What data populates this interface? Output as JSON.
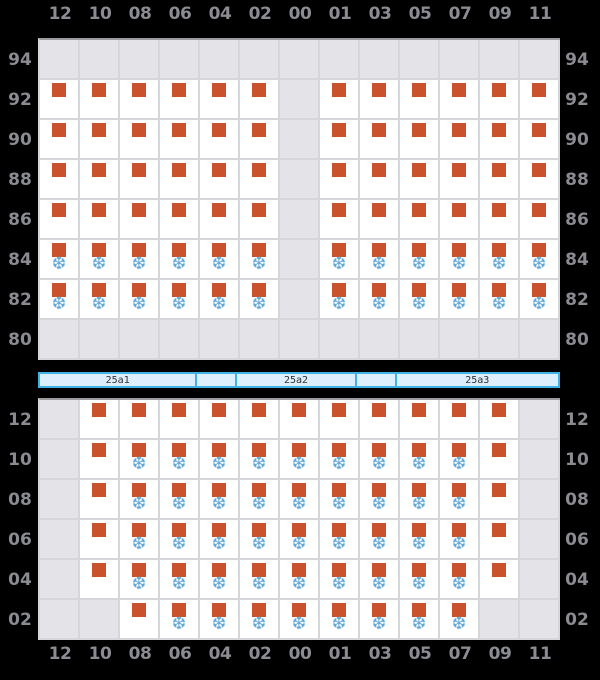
{
  "colors": {
    "background": "#000000",
    "cell_white": "#ffffff",
    "cell_empty": "#e4e4e8",
    "grid_line": "#d5d6da",
    "grid_top_line": "#9b9c9f",
    "label_gray": "#8b8b92",
    "orange_square": "#c9512c",
    "snowflake_blue": "#5ea7d8",
    "bar_border": "#41b2e5",
    "bar_fill": "#ddeefc",
    "bar_text": "#333333"
  },
  "icons": {
    "snowflake": "❆"
  },
  "cell_state_legend": {
    "e": "empty-gray-cell",
    "s": "orange-square-only",
    "sf": "orange-square-with-snowflake"
  },
  "columns": [
    "12",
    "10",
    "08",
    "06",
    "04",
    "02",
    "00",
    "01",
    "03",
    "05",
    "07",
    "09",
    "11"
  ],
  "top_axis_labels": [
    "12",
    "10",
    "08",
    "06",
    "04",
    "02",
    "00",
    "01",
    "03",
    "05",
    "07",
    "09",
    "11"
  ],
  "bottom_axis_labels": [
    "12",
    "10",
    "08",
    "06",
    "04",
    "02",
    "00",
    "01",
    "03",
    "05",
    "07",
    "09",
    "11"
  ],
  "top_grid": {
    "row_labels": [
      "94",
      "92",
      "90",
      "88",
      "86",
      "84",
      "82",
      "80"
    ],
    "rows": [
      {
        "label": "94",
        "cells": [
          "e",
          "e",
          "e",
          "e",
          "e",
          "e",
          "e",
          "e",
          "e",
          "e",
          "e",
          "e",
          "e"
        ]
      },
      {
        "label": "92",
        "cells": [
          "s",
          "s",
          "s",
          "s",
          "s",
          "s",
          "e",
          "s",
          "s",
          "s",
          "s",
          "s",
          "s"
        ]
      },
      {
        "label": "90",
        "cells": [
          "s",
          "s",
          "s",
          "s",
          "s",
          "s",
          "e",
          "s",
          "s",
          "s",
          "s",
          "s",
          "s"
        ]
      },
      {
        "label": "88",
        "cells": [
          "s",
          "s",
          "s",
          "s",
          "s",
          "s",
          "e",
          "s",
          "s",
          "s",
          "s",
          "s",
          "s"
        ]
      },
      {
        "label": "86",
        "cells": [
          "s",
          "s",
          "s",
          "s",
          "s",
          "s",
          "e",
          "s",
          "s",
          "s",
          "s",
          "s",
          "s"
        ]
      },
      {
        "label": "84",
        "cells": [
          "sf",
          "sf",
          "sf",
          "sf",
          "sf",
          "sf",
          "e",
          "sf",
          "sf",
          "sf",
          "sf",
          "sf",
          "sf"
        ]
      },
      {
        "label": "82",
        "cells": [
          "sf",
          "sf",
          "sf",
          "sf",
          "sf",
          "sf",
          "e",
          "sf",
          "sf",
          "sf",
          "sf",
          "sf",
          "sf"
        ]
      },
      {
        "label": "80",
        "cells": [
          "e",
          "e",
          "e",
          "e",
          "e",
          "e",
          "e",
          "e",
          "e",
          "e",
          "e",
          "e",
          "e"
        ]
      }
    ]
  },
  "divider_bar": {
    "segments": [
      {
        "label": "25a1",
        "width": 158
      },
      {
        "label": "",
        "width": 40
      },
      {
        "label": "25a2",
        "width": 120
      },
      {
        "label": "",
        "width": 40
      },
      {
        "label": "25a3",
        "width": 162
      }
    ]
  },
  "bottom_grid": {
    "row_labels": [
      "12",
      "10",
      "08",
      "06",
      "04",
      "02"
    ],
    "rows": [
      {
        "label": "12",
        "cells": [
          "e",
          "s",
          "s",
          "s",
          "s",
          "s",
          "s",
          "s",
          "s",
          "s",
          "s",
          "s",
          "e"
        ]
      },
      {
        "label": "10",
        "cells": [
          "e",
          "s",
          "sf",
          "sf",
          "sf",
          "sf",
          "sf",
          "sf",
          "sf",
          "sf",
          "sf",
          "s",
          "e"
        ]
      },
      {
        "label": "08",
        "cells": [
          "e",
          "s",
          "sf",
          "sf",
          "sf",
          "sf",
          "sf",
          "sf",
          "sf",
          "sf",
          "sf",
          "s",
          "e"
        ]
      },
      {
        "label": "06",
        "cells": [
          "e",
          "s",
          "sf",
          "sf",
          "sf",
          "sf",
          "sf",
          "sf",
          "sf",
          "sf",
          "sf",
          "s",
          "e"
        ]
      },
      {
        "label": "04",
        "cells": [
          "e",
          "s",
          "sf",
          "sf",
          "sf",
          "sf",
          "sf",
          "sf",
          "sf",
          "sf",
          "sf",
          "s",
          "e"
        ]
      },
      {
        "label": "02",
        "cells": [
          "e",
          "e",
          "s",
          "sf",
          "sf",
          "sf",
          "sf",
          "sf",
          "sf",
          "sf",
          "sf",
          "e",
          "e"
        ]
      }
    ]
  }
}
